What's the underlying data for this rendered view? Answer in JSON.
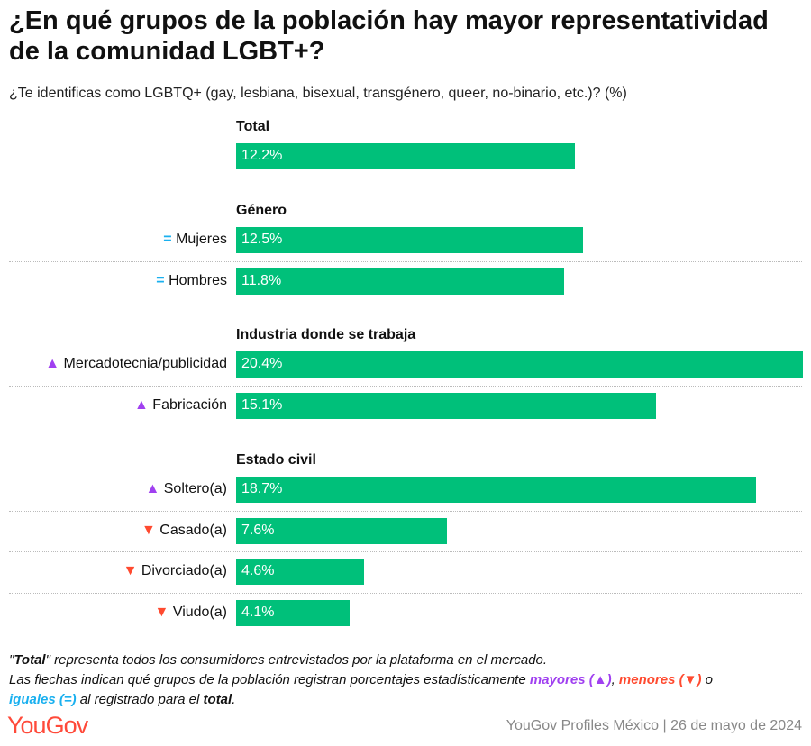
{
  "title": "¿En qué grupos de la población hay mayor representatividad de la comunidad LGBT+?",
  "subtitle": "¿Te identificas como LGBTQ+ (gay, lesbiana, bisexual, transgénero, queer, no-binario, etc.)? (%)",
  "colors": {
    "bar": "#00c07a",
    "higher": "#a040f0",
    "lower": "#ff4a2f",
    "equal": "#1ab0ef"
  },
  "chart_data": {
    "type": "bar",
    "orientation": "horizontal",
    "xlim": [
      0,
      20.4
    ],
    "groups": [
      {
        "name": "Total",
        "items": [
          {
            "label": "",
            "value": 12.2,
            "display": "12.2%",
            "sig": "none"
          }
        ]
      },
      {
        "name": "Género",
        "items": [
          {
            "label": "Mujeres",
            "value": 12.5,
            "display": "12.5%",
            "sig": "equal"
          },
          {
            "label": "Hombres",
            "value": 11.8,
            "display": "11.8%",
            "sig": "equal"
          }
        ]
      },
      {
        "name": "Industria donde se trabaja",
        "items": [
          {
            "label": "Mercadotecnia/publicidad",
            "value": 20.4,
            "display": "20.4%",
            "sig": "higher"
          },
          {
            "label": "Fabricación",
            "value": 15.1,
            "display": "15.1%",
            "sig": "higher"
          }
        ]
      },
      {
        "name": "Estado civil",
        "items": [
          {
            "label": "Soltero(a)",
            "value": 18.7,
            "display": "18.7%",
            "sig": "higher"
          },
          {
            "label": "Casado(a)",
            "value": 7.6,
            "display": "7.6%",
            "sig": "lower"
          },
          {
            "label": "Divorciado(a)",
            "value": 4.6,
            "display": "4.6%",
            "sig": "lower"
          },
          {
            "label": "Viudo(a)",
            "value": 4.1,
            "display": "4.1%",
            "sig": "lower"
          }
        ]
      }
    ]
  },
  "notes": {
    "q1": "\"",
    "total_bold": "Total",
    "q2": "\"",
    "line1": " representa todos los consumidores entrevistados por la plataforma en el mercado.",
    "line2": "Las flechas indican qué grupos de la población registran porcentajes estadísticamente ",
    "mayores": "mayores (▲)",
    "comma": ", ",
    "menores": "menores (▼)",
    "o": " o",
    "iguales": "iguales (=)",
    "line3": " al registrado para el ",
    "total2": "total",
    "end": "."
  },
  "logo": "YouGov",
  "source": "YouGov Profiles México | 26 de mayo de 2024"
}
